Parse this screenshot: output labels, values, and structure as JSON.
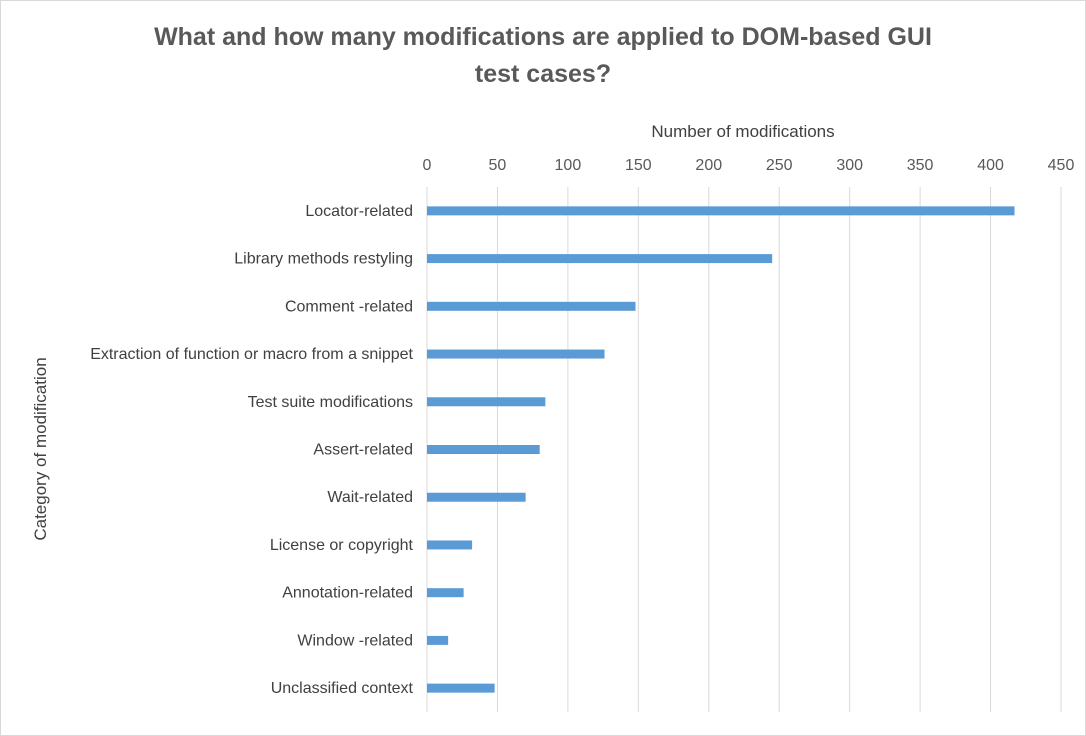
{
  "chart_data": {
    "type": "bar",
    "orientation": "horizontal",
    "title_lines": [
      "What and how many modifications are applied to DOM-based GUI",
      "test cases?"
    ],
    "xlabel": "Number of modifications",
    "ylabel": "Category of modification",
    "xlim": [
      0,
      450
    ],
    "x_ticks": [
      0,
      50,
      100,
      150,
      200,
      250,
      300,
      350,
      400,
      450
    ],
    "x_axis_position": "top",
    "grid": true,
    "legend": "none",
    "bar_color": "#5b9bd5",
    "categories": [
      "Locator-related",
      "Library methods restyling",
      "Comment -related",
      "Extraction of function or macro from a snippet",
      "Test suite modifications",
      "Assert-related",
      "Wait-related",
      "License or copyright",
      "Annotation-related",
      "Window -related",
      "Unclassified context"
    ],
    "values": [
      417,
      245,
      148,
      126,
      84,
      80,
      70,
      32,
      26,
      15,
      48
    ]
  }
}
